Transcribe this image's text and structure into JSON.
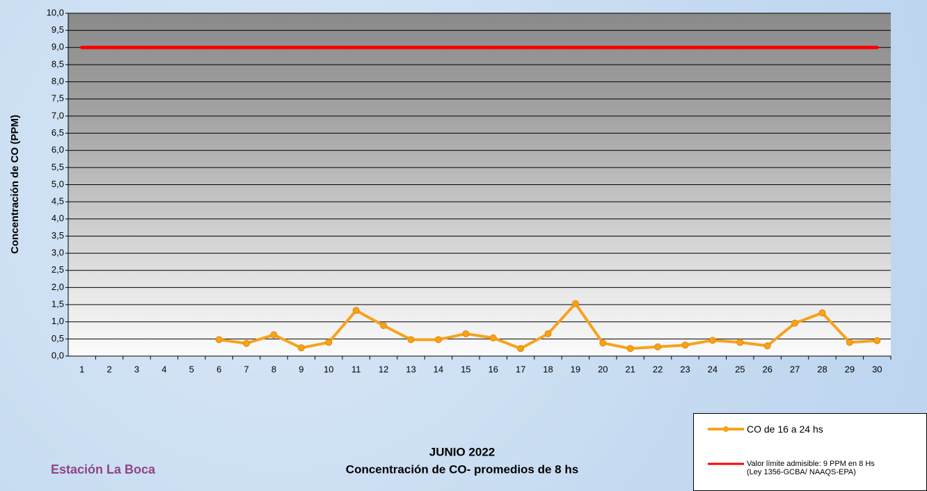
{
  "chart_data": {
    "type": "line",
    "title": "JUNIO 2022",
    "subtitle": "Concentración de CO- promedios de 8 hs",
    "annotation": "Estación La Boca",
    "y_label": "Concentración de CO (PPM)",
    "categories": [
      "1",
      "2",
      "3",
      "4",
      "5",
      "6",
      "7",
      "8",
      "9",
      "10",
      "11",
      "12",
      "13",
      "14",
      "15",
      "16",
      "17",
      "18",
      "19",
      "20",
      "21",
      "22",
      "23",
      "24",
      "25",
      "26",
      "27",
      "28",
      "29",
      "30"
    ],
    "series": [
      {
        "name": "CO de 16 a 24 hs",
        "color": "#f7a21b",
        "markers": true,
        "values": [
          null,
          null,
          null,
          null,
          null,
          0.48,
          0.37,
          0.62,
          0.24,
          0.4,
          1.33,
          0.89,
          0.48,
          0.48,
          0.65,
          0.53,
          0.22,
          0.65,
          1.53,
          0.38,
          0.22,
          0.27,
          0.32,
          0.46,
          0.4,
          0.3,
          0.96,
          1.26,
          0.4,
          0.45
        ]
      },
      {
        "name": "Valor límite admisible: 9 PPM en 8 Hs (Ley 1356-GCBA/ NAAQS-EPA)",
        "color": "#ff0000",
        "markers": false,
        "values": [
          9,
          9,
          9,
          9,
          9,
          9,
          9,
          9,
          9,
          9,
          9,
          9,
          9,
          9,
          9,
          9,
          9,
          9,
          9,
          9,
          9,
          9,
          9,
          9,
          9,
          9,
          9,
          9,
          9,
          9
        ]
      }
    ],
    "ylim": [
      0,
      10
    ],
    "yticks": [
      {
        "value": 0,
        "label": "0,0"
      },
      {
        "value": 0.5,
        "label": "0,5"
      },
      {
        "value": 1,
        "label": "1,0"
      },
      {
        "value": 1.5,
        "label": "1,5"
      },
      {
        "value": 2,
        "label": "2,0"
      },
      {
        "value": 2.5,
        "label": "2,5"
      },
      {
        "value": 3,
        "label": "3,0"
      },
      {
        "value": 3.5,
        "label": "3,5"
      },
      {
        "value": 4,
        "label": "4,0"
      },
      {
        "value": 4.5,
        "label": "4,5"
      },
      {
        "value": 5,
        "label": "5,0"
      },
      {
        "value": 5.5,
        "label": "5,5"
      },
      {
        "value": 6,
        "label": "6,0"
      },
      {
        "value": 6.5,
        "label": "6,5"
      },
      {
        "value": 7,
        "label": "7,0"
      },
      {
        "value": 7.5,
        "label": "7,5"
      },
      {
        "value": 8,
        "label": "8,0"
      },
      {
        "value": 8.5,
        "label": "8,5"
      },
      {
        "value": 9,
        "label": "9,0"
      },
      {
        "value": 9.5,
        "label": "9,5"
      },
      {
        "value": 10,
        "label": "10,0"
      }
    ],
    "grid": true,
    "legend": "bottom-right"
  }
}
